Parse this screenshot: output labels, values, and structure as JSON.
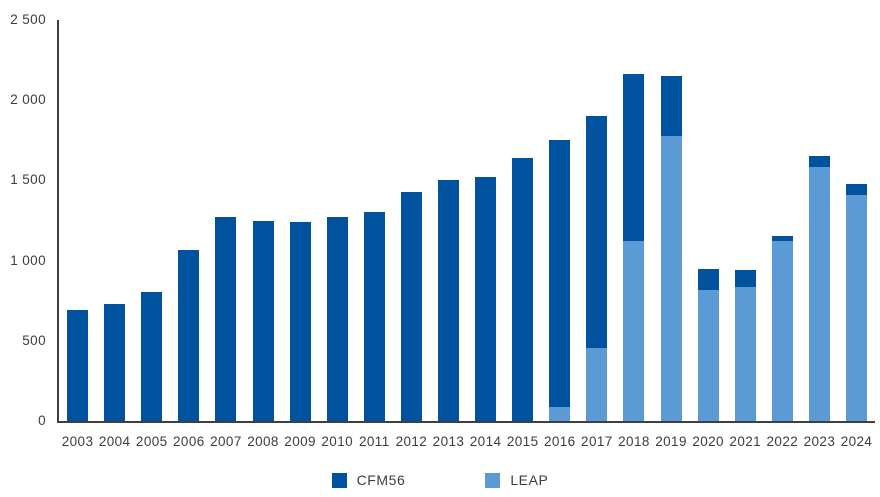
{
  "chart_data": {
    "type": "bar",
    "stacked": true,
    "title": "",
    "xlabel": "",
    "ylabel": "",
    "ylim": [
      0,
      2500
    ],
    "grid": false,
    "legend_position": "bottom",
    "categories": [
      "2003",
      "2004",
      "2005",
      "2006",
      "2007",
      "2008",
      "2009",
      "2010",
      "2011",
      "2012",
      "2013",
      "2014",
      "2015",
      "2016",
      "2017",
      "2018",
      "2019",
      "2020",
      "2021",
      "2022",
      "2023",
      "2024"
    ],
    "series": [
      {
        "name": "CFM56",
        "color": "#00519e",
        "values": [
          690,
          730,
          805,
          1065,
          1270,
          1250,
          1240,
          1270,
          1305,
          1425,
          1505,
          1520,
          1640,
          1670,
          1445,
          1045,
          375,
          135,
          105,
          35,
          65,
          70
        ]
      },
      {
        "name": "LEAP",
        "color": "#5b9ad5",
        "values": [
          0,
          0,
          0,
          0,
          0,
          0,
          0,
          0,
          0,
          0,
          0,
          0,
          0,
          85,
          455,
          1120,
          1775,
          815,
          835,
          1120,
          1585,
          1410
        ]
      }
    ],
    "yticks": [
      {
        "value": 0,
        "label": "0"
      },
      {
        "value": 500,
        "label": "500"
      },
      {
        "value": 1000,
        "label": "1 000"
      },
      {
        "value": 1500,
        "label": "1 500"
      },
      {
        "value": 2000,
        "label": "2 000"
      },
      {
        "value": 2500,
        "label": "2 500"
      }
    ]
  },
  "colors": {
    "cfm56": "#00519e",
    "leap": "#5b9ad5",
    "axis": "#3f3f3f",
    "text": "#3d3d3d"
  }
}
